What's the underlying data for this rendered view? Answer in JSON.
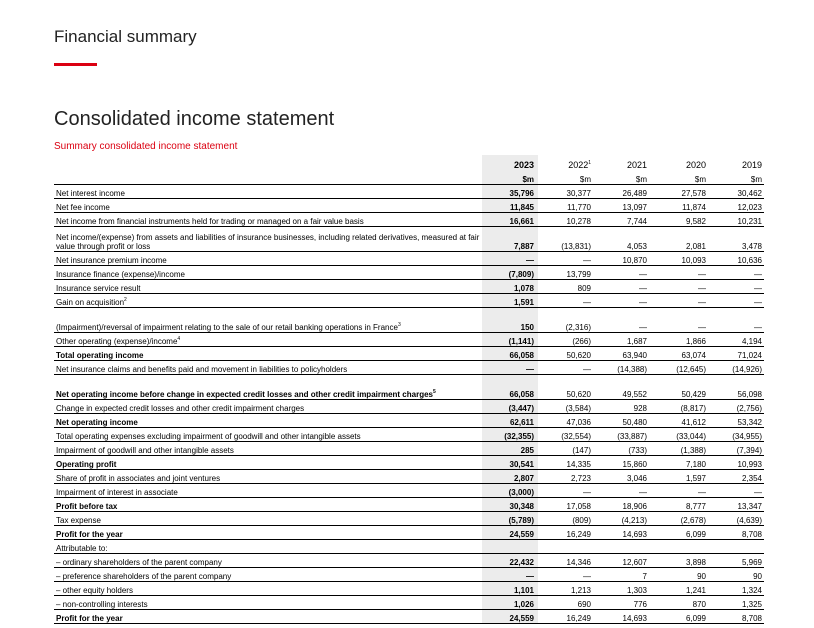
{
  "page_title": "Financial summary",
  "accent_color": "#db0011",
  "section_title": "Consolidated income statement",
  "subtitle": "Summary consolidated income statement",
  "columns": [
    {
      "year": "2023",
      "sup": "",
      "unit": "$m"
    },
    {
      "year": "2022",
      "sup": "1",
      "unit": "$m"
    },
    {
      "year": "2021",
      "sup": "",
      "unit": "$m"
    },
    {
      "year": "2020",
      "sup": "",
      "unit": "$m"
    },
    {
      "year": "2019",
      "sup": "",
      "unit": "$m"
    }
  ],
  "rows": [
    {
      "label": "Net interest income",
      "values": [
        "35,796",
        "30,377",
        "26,489",
        "27,578",
        "30,462"
      ]
    },
    {
      "label": "Net fee income",
      "values": [
        "11,845",
        "11,770",
        "13,097",
        "11,874",
        "12,023"
      ]
    },
    {
      "label": "Net income from financial instruments held for trading or managed on a fair value basis",
      "values": [
        "16,661",
        "10,278",
        "7,744",
        "9,582",
        "10,231"
      ]
    },
    {
      "label": "Net income/(expense) from assets and liabilities of insurance businesses, including related derivatives, measured at fair value through profit or loss",
      "tall": true,
      "values": [
        "7,887",
        "(13,831)",
        "4,053",
        "2,081",
        "3,478"
      ]
    },
    {
      "label": "Net insurance premium income",
      "values": [
        "—",
        "—",
        "10,870",
        "10,093",
        "10,636"
      ]
    },
    {
      "label": "Insurance finance (expense)/income",
      "values": [
        "(7,809)",
        "13,799",
        "—",
        "—",
        "—"
      ]
    },
    {
      "label": "Insurance service result",
      "values": [
        "1,078",
        "809",
        "—",
        "—",
        "—"
      ]
    },
    {
      "label": "Gain on acquisition",
      "sup": "2",
      "values": [
        "1,591",
        "—",
        "—",
        "—",
        "—"
      ]
    },
    {
      "label": "(Impairment)/reversal of impairment relating to the sale of our retail banking operations in France",
      "sup": "3",
      "tall": true,
      "values": [
        "150",
        "(2,316)",
        "—",
        "—",
        "—"
      ]
    },
    {
      "label": "Other operating (expense)/income",
      "sup": "4",
      "values": [
        "(1,141)",
        "(266)",
        "1,687",
        "1,866",
        "4,194"
      ]
    },
    {
      "label": "Total operating income",
      "bold": true,
      "values": [
        "66,058",
        "50,620",
        "63,940",
        "63,074",
        "71,024"
      ]
    },
    {
      "label": "Net insurance claims and benefits paid and movement in liabilities to policyholders",
      "values": [
        "—",
        "—",
        "(14,388)",
        "(12,645)",
        "(14,926)"
      ]
    },
    {
      "label": "Net operating income before change in expected credit losses and other credit impairment charges",
      "sup": "5",
      "bold": true,
      "tall": true,
      "values": [
        "66,058",
        "50,620",
        "49,552",
        "50,429",
        "56,098"
      ]
    },
    {
      "label": "Change in expected credit losses and other credit impairment charges",
      "values": [
        "(3,447)",
        "(3,584)",
        "928",
        "(8,817)",
        "(2,756)"
      ]
    },
    {
      "label": "Net operating income",
      "bold": true,
      "values": [
        "62,611",
        "47,036",
        "50,480",
        "41,612",
        "53,342"
      ]
    },
    {
      "label": "Total operating expenses excluding impairment of goodwill and other intangible assets",
      "values": [
        "(32,355)",
        "(32,554)",
        "(33,887)",
        "(33,044)",
        "(34,955)"
      ]
    },
    {
      "label": "Impairment of goodwill and other intangible assets",
      "values": [
        "285",
        "(147)",
        "(733)",
        "(1,388)",
        "(7,394)"
      ]
    },
    {
      "label": "Operating profit",
      "bold": true,
      "values": [
        "30,541",
        "14,335",
        "15,860",
        "7,180",
        "10,993"
      ]
    },
    {
      "label": "Share of profit in associates and joint ventures",
      "values": [
        "2,807",
        "2,723",
        "3,046",
        "1,597",
        "2,354"
      ]
    },
    {
      "label": "Impairment of interest in associate",
      "values": [
        "(3,000)",
        "—",
        "—",
        "—",
        "—"
      ]
    },
    {
      "label": "Profit before tax",
      "bold": true,
      "values": [
        "30,348",
        "17,058",
        "18,906",
        "8,777",
        "13,347"
      ]
    },
    {
      "label": "Tax expense",
      "values": [
        "(5,789)",
        "(809)",
        "(4,213)",
        "(2,678)",
        "(4,639)"
      ]
    },
    {
      "label": "Profit for the year",
      "bold": true,
      "values": [
        "24,559",
        "16,249",
        "14,693",
        "6,099",
        "8,708"
      ]
    },
    {
      "label": "Attributable to:",
      "values": [
        "",
        "",
        "",
        "",
        ""
      ]
    },
    {
      "label": "– ordinary shareholders of the parent company",
      "values": [
        "22,432",
        "14,346",
        "12,607",
        "3,898",
        "5,969"
      ]
    },
    {
      "label": "– preference shareholders of the parent company",
      "values": [
        "—",
        "—",
        "7",
        "90",
        "90"
      ]
    },
    {
      "label": "– other equity holders",
      "values": [
        "1,101",
        "1,213",
        "1,303",
        "1,241",
        "1,324"
      ]
    },
    {
      "label": "– non-controlling interests",
      "values": [
        "1,026",
        "690",
        "776",
        "870",
        "1,325"
      ]
    },
    {
      "label": "Profit for the year",
      "bold": true,
      "values": [
        "24,559",
        "16,249",
        "14,693",
        "6,099",
        "8,708"
      ]
    }
  ]
}
